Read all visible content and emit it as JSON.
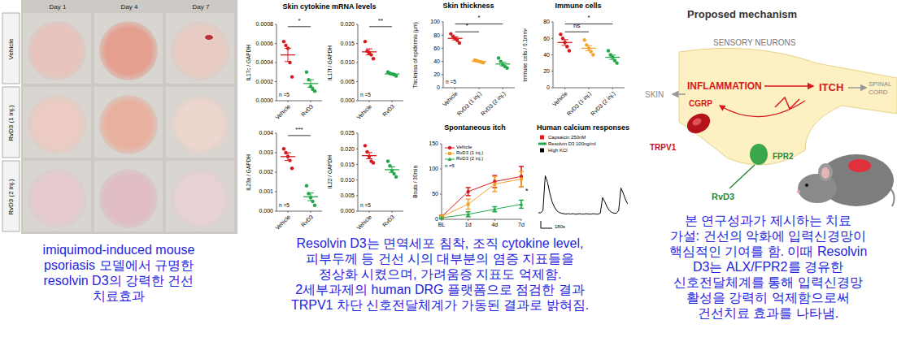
{
  "photo_panel": {
    "columns": [
      "Day 1",
      "Day 4",
      "Day 7"
    ],
    "rows": [
      "Vehicle",
      "RvD3 (1 inj.)",
      "RvD3 (2 inj.)"
    ]
  },
  "cytokine_title": "Skin cytokine mRNA levels",
  "chart_data": [
    {
      "type": "dot",
      "y_label": "IL17c / GAPDH",
      "categories": [
        "Vehicle",
        "RvD3"
      ],
      "colors": [
        "#d7191c",
        "#22a84a"
      ],
      "values": [
        [
          0.00062,
          0.00058,
          0.00055,
          0.0004,
          0.00025
        ],
        [
          0.0003,
          0.00022,
          0.00015,
          0.00012,
          0.0001
        ]
      ],
      "means": [
        0.00048,
        0.00018
      ],
      "sem": [
        7e-05,
        4e-05
      ],
      "ylim": [
        0,
        0.0008
      ],
      "yticks": [
        {
          "value": 0,
          "label": "0.0000"
        },
        {
          "value": 0.0002,
          "label": "0.0002"
        },
        {
          "value": 0.0004,
          "label": "0.0004"
        },
        {
          "value": 0.0006,
          "label": "0.0006"
        },
        {
          "value": 0.0008,
          "label": "0.0008"
        }
      ],
      "annotation": "n =5",
      "significance": [
        {
          "from": 0,
          "to": 1,
          "label": "*"
        }
      ]
    },
    {
      "type": "dot",
      "y_label": "IL17f / GAPDH",
      "categories": [
        "Vehicle",
        "RvD3"
      ],
      "colors": [
        "#d7191c",
        "#22a84a"
      ],
      "values": [
        [
          0.0155,
          0.013,
          0.0125,
          0.012,
          0.011
        ],
        [
          0.0075,
          0.0072,
          0.007,
          0.0068,
          0.0065
        ]
      ],
      "means": [
        0.0128,
        0.007
      ],
      "sem": [
        0.0008,
        0.0002
      ],
      "ylim": [
        0,
        0.02
      ],
      "yticks": [
        {
          "value": 0,
          "label": "0.000"
        },
        {
          "value": 0.005,
          "label": "0.005"
        },
        {
          "value": 0.01,
          "label": "0.010"
        },
        {
          "value": 0.015,
          "label": "0.015"
        },
        {
          "value": 0.02,
          "label": "0.020"
        }
      ],
      "annotation": "n =5",
      "significance": [
        {
          "from": 0,
          "to": 1,
          "label": "**"
        }
      ]
    },
    {
      "type": "dot",
      "y_label": "IL23a / GAPDH",
      "categories": [
        "Vehicle",
        "RvD3"
      ],
      "colors": [
        "#d7191c",
        "#22a84a"
      ],
      "values": [
        [
          0.0032,
          0.003,
          0.0028,
          0.0026,
          0.0022
        ],
        [
          0.0013,
          0.0009,
          0.0007,
          0.0005,
          0.0003
        ]
      ],
      "means": [
        0.0028,
        0.00074
      ],
      "sem": [
        0.0002,
        0.0002
      ],
      "ylim": [
        0,
        0.004
      ],
      "yticks": [
        {
          "value": 0,
          "label": "0.000"
        },
        {
          "value": 0.001,
          "label": "0.001"
        },
        {
          "value": 0.002,
          "label": "0.002"
        },
        {
          "value": 0.003,
          "label": "0.003"
        },
        {
          "value": 0.004,
          "label": "0.004"
        }
      ],
      "annotation": "n =5",
      "significance": [
        {
          "from": 0,
          "to": 1,
          "label": "***"
        }
      ]
    },
    {
      "type": "dot",
      "y_label": "IL22 / GAPDH",
      "categories": [
        "Vehicle",
        "RvD3"
      ],
      "colors": [
        "#d7191c",
        "#22a84a"
      ],
      "values": [
        [
          0.021,
          0.019,
          0.0175,
          0.016,
          0.0155
        ],
        [
          0.016,
          0.0145,
          0.013,
          0.012,
          0.011
        ]
      ],
      "means": [
        0.0178,
        0.0133
      ],
      "sem": [
        0.001,
        0.0009
      ],
      "ylim": [
        0,
        0.025
      ],
      "yticks": [
        {
          "value": 0,
          "label": "0.000"
        },
        {
          "value": 0.005,
          "label": "0.005"
        },
        {
          "value": 0.01,
          "label": "0.010"
        },
        {
          "value": 0.015,
          "label": "0.015"
        },
        {
          "value": 0.02,
          "label": "0.020"
        },
        {
          "value": 0.025,
          "label": "0.025"
        }
      ],
      "annotation": "n =5"
    },
    {
      "type": "dot",
      "title": "Skin thickness",
      "y_label": "Thickness of epidermis (μm)",
      "categories": [
        "Vehicle",
        "RvD3 (1 inj.)",
        "RvD3 (2 inj.)"
      ],
      "colors": [
        "#d7191c",
        "#f4a32a",
        "#22a84a"
      ],
      "values": [
        [
          82,
          78,
          75,
          72,
          68
        ],
        [
          42,
          41,
          40,
          39,
          38
        ],
        [
          45,
          40,
          35,
          32,
          30
        ]
      ],
      "means": [
        75,
        40,
        36
      ],
      "sem": [
        2.4,
        0.7,
        2.7
      ],
      "ylim": [
        0,
        100
      ],
      "yticks": [
        0,
        20,
        40,
        60,
        80,
        100
      ],
      "annotation": "n =5",
      "significance": [
        {
          "from": 0,
          "to": 1,
          "label": "*"
        },
        {
          "from": 0,
          "to": 2,
          "label": "*"
        }
      ]
    },
    {
      "type": "dot",
      "title": "Immune cells",
      "y_label": "Immune cells / 0.1mm²",
      "categories": [
        "Vehicle",
        "RvD3 (1 inj.)",
        "RvD3 (2 inj.)"
      ],
      "colors": [
        "#d7191c",
        "#f4a32a",
        "#22a84a"
      ],
      "values": [
        [
          65,
          60,
          55,
          50,
          45
        ],
        [
          58,
          52,
          48,
          44,
          40
        ],
        [
          45,
          40,
          37,
          33,
          30
        ]
      ],
      "means": [
        55,
        48,
        37
      ],
      "sem": [
        3.5,
        3.1,
        2.6
      ],
      "ylim": [
        0,
        80
      ],
      "yticks": [
        0,
        20,
        40,
        60,
        80
      ],
      "significance": [
        {
          "from": 0,
          "to": 1,
          "label": "ns"
        },
        {
          "from": 0,
          "to": 2,
          "label": "*"
        }
      ]
    },
    {
      "type": "line",
      "title": "Spontaneous itch",
      "y_label": "Bouts / 30min",
      "categories": [
        "BL",
        "1d",
        "4d",
        "7d"
      ],
      "series": [
        {
          "name": "Vehicle",
          "color": "#d7191c",
          "marker": "circle",
          "values": [
            5,
            55,
            75,
            85
          ],
          "errors": [
            3,
            8,
            12,
            20
          ]
        },
        {
          "name": "RvD3 (1 inj.)",
          "color": "#f4a32a",
          "marker": "square",
          "values": [
            5,
            30,
            70,
            80
          ],
          "errors": [
            3,
            10,
            15,
            15
          ]
        },
        {
          "name": "RvD3 (2 inj.)",
          "color": "#22a84a",
          "marker": "triangle",
          "values": [
            3,
            10,
            20,
            30
          ],
          "errors": [
            2,
            5,
            5,
            8
          ]
        }
      ],
      "ylim": [
        0,
        150
      ],
      "yticks": [
        0,
        50,
        100,
        150
      ],
      "legend": "upper left",
      "annotation": "n =5",
      "significance": [
        {
          "from": 0,
          "to": 2,
          "label": "*"
        }
      ]
    },
    {
      "type": "line",
      "title": "Human calcium responses",
      "color": "#000000",
      "tick_labels": false,
      "values": [
        0.15,
        0.15,
        0.2,
        1.0,
        0.85,
        0.6,
        0.4,
        0.28,
        0.2,
        0.16,
        0.14,
        0.13,
        0.12,
        0.13,
        0.12,
        0.13,
        0.12,
        0.12,
        0.13,
        0.12,
        0.12,
        0.13,
        0.12,
        0.12,
        0.13,
        0.12,
        0.12,
        0.14,
        0.5,
        0.4,
        0.28,
        0.2,
        0.16,
        0.14,
        0.14,
        0.2,
        0.72,
        0.6,
        0.45,
        0.35
      ],
      "ylim": [
        0,
        1.4
      ],
      "stimuli": [
        {
          "name": "Capsaicin 250nM",
          "color": "#e31a1c",
          "at": [
            2,
            27
          ]
        },
        {
          "name": "Resolvin D3 100ng/ml",
          "color": "#22a84a",
          "from": 12,
          "to": 20
        },
        {
          "name": "High KCl",
          "color": "#000000",
          "at": [
            35
          ]
        }
      ],
      "scale_bar": "180s"
    }
  ],
  "mechanism": {
    "title": "Proposed mechanism",
    "neuron": "SENSORY NEURONS",
    "skin": "SKIN",
    "inflammation": "INFLAMMATION",
    "cgrp": "CGRP",
    "itch": "ITCH",
    "spinal_cord": [
      "SPINAL",
      "CORD"
    ],
    "receptor": "TRPV1",
    "fpr2": "FPR2",
    "ligand": "RvD3"
  },
  "captions": {
    "left": [
      "imiquimod-induced mouse",
      "psoriasis 모델에서 규명한",
      "resolvin D3의 강력한 건선",
      "치료효과"
    ],
    "middle": [
      "Resolvin D3는 면역세포 침착, 조직 cytokine level,",
      "피부두께 등 건선 시의 대부분의 염증 지표들을",
      "정상화 시켰으며, 가려움증 지표도 억제함.",
      "2세부과제의 human DRG 플랫폼으로 점검한 결과",
      "TRPV1 차단 신호전달체계가 가동된 결과로 밝혀짐."
    ],
    "right": [
      "본 연구성과가 제시하는 치료",
      "가설: 건선의 악화에 입력신경망이",
      "핵심적인 기여를 함. 이때 Resolvin",
      "D3는 ALX/FPR2를 경유한",
      "신호전달체계를 통해 입력신경망",
      "활성을 강력히 억제함으로써",
      "건선치료 효과를 나타냄."
    ]
  }
}
